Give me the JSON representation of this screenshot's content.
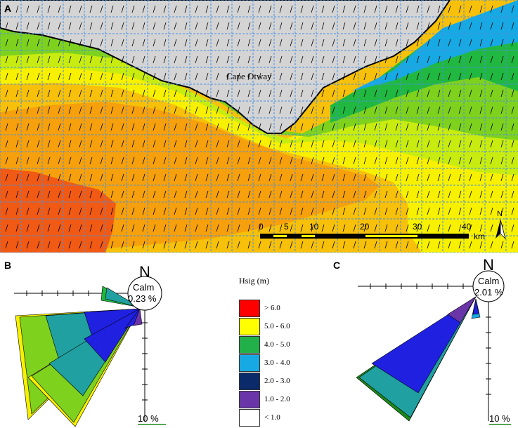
{
  "panel_labels": {
    "a": "A",
    "b": "B",
    "c": "C"
  },
  "map": {
    "place_label": "Cape Otway",
    "scale_ticks": [
      "0",
      "5",
      "10",
      "20",
      "30",
      "40"
    ],
    "scale_unit": "km",
    "north_label": "N"
  },
  "legend": {
    "title": "Hsig (m)",
    "items": [
      {
        "label": "> 6.0",
        "color": "#ff0000"
      },
      {
        "label": "5.0 - 6.0",
        "color": "#ffff00"
      },
      {
        "label": "4.0 - 5.0",
        "color": "#22b04a"
      },
      {
        "label": "3.0 - 4.0",
        "color": "#17a9e3"
      },
      {
        "label": "2.0 - 3.0",
        "color": "#0a2a6a"
      },
      {
        "label": "1.0 - 2.0",
        "color": "#6a35a8"
      },
      {
        "label": "< 1.0",
        "color": "#ffffff"
      }
    ]
  },
  "rose_b": {
    "north": "N",
    "calm_label": "Calm",
    "calm_value": "0.23 %",
    "scale_label": "10 %"
  },
  "rose_c": {
    "north": "N",
    "calm_label": "Calm",
    "calm_value": "2.01 %",
    "scale_label": "10 %"
  },
  "colors": {
    "land": "#d4d4d4",
    "red_zone": "#f05a14",
    "orange_zone": "#f5a00c",
    "light_orange": "#f7c00a",
    "yellow": "#f7f000",
    "yellow_green": "#c8ec10",
    "green": "#7ed21e",
    "teal_green": "#20b840",
    "grid": "#4a90e0"
  }
}
